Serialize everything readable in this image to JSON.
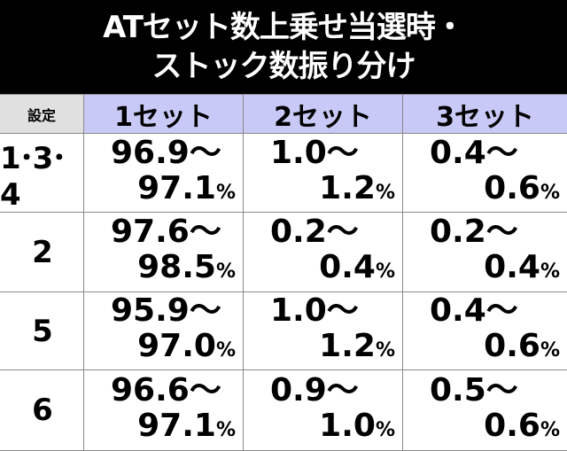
{
  "header": {
    "title_lines": [
      "ATセット数上乗せ当選時・",
      "ストック数振り分け"
    ]
  },
  "table": {
    "columns": [
      "設定",
      "1セット",
      "2セット",
      "3セット"
    ],
    "rows": [
      {
        "setting": "1･3･4",
        "cells": [
          {
            "from": "96.9～",
            "to": "97.1",
            "unit": "%"
          },
          {
            "from": "1.0～",
            "to": "1.2",
            "unit": "%"
          },
          {
            "from": "0.4～",
            "to": "0.6",
            "unit": "%"
          }
        ]
      },
      {
        "setting": "2",
        "cells": [
          {
            "from": "97.6～",
            "to": "98.5",
            "unit": "%"
          },
          {
            "from": "0.2～",
            "to": "0.4",
            "unit": "%"
          },
          {
            "from": "0.2～",
            "to": "0.4",
            "unit": "%"
          }
        ]
      },
      {
        "setting": "5",
        "cells": [
          {
            "from": "95.9～",
            "to": "97.0",
            "unit": "%"
          },
          {
            "from": "1.0～",
            "to": "1.2",
            "unit": "%"
          },
          {
            "from": "0.4～",
            "to": "0.6",
            "unit": "%"
          }
        ]
      },
      {
        "setting": "6",
        "cells": [
          {
            "from": "96.6～",
            "to": "97.1",
            "unit": "%"
          },
          {
            "from": "0.9～",
            "to": "1.0",
            "unit": "%"
          },
          {
            "from": "0.5～",
            "to": "0.6",
            "unit": "%"
          }
        ]
      }
    ]
  }
}
